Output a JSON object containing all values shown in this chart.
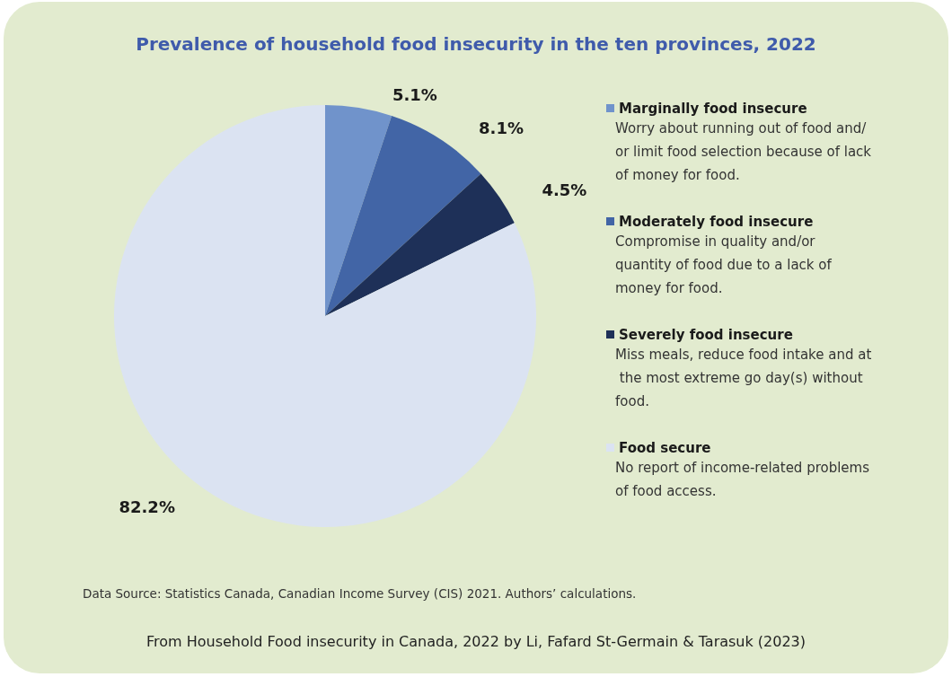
{
  "chart_data": {
    "type": "pie",
    "title": "Prevalence of household food insecurity in the ten provinces, 2022",
    "categories": [
      "Marginally food insecure",
      "Moderately food insecure",
      "Severely food insecure",
      "Food secure"
    ],
    "values": [
      5.1,
      8.1,
      4.5,
      82.2
    ],
    "value_labels": [
      "5.1%",
      "8.1%",
      "4.5%",
      "82.2%"
    ],
    "colors": [
      "#7093cb",
      "#4265a6",
      "#1e3058",
      "#dbe3f2"
    ],
    "legend": "right",
    "annotations": [
      "Worry about running out of food and/or limit food selection because of lack of money for food.",
      "Compromise in quality and/or quantity of food due to a lack of money for food.",
      "Miss meals, reduce food intake and at the most extreme go day(s) without food.",
      "No report of income-related problems of food access.",
      "Data Source: Statistics Canada, Canadian Income Survey (CIS) 2021. Authors’ calculations.",
      "From Household Food insecurity in Canada, 2022 by Li, Fafard St-Germain & Tarasuk (2023)"
    ]
  }
}
